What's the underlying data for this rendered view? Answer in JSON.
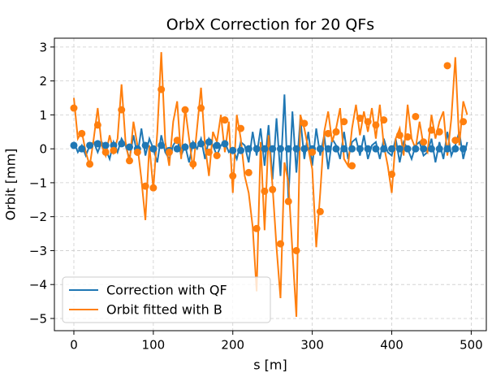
{
  "chart_data": {
    "type": "line",
    "title": "OrbX Correction for 20 QFs",
    "xlabel": "s [m]",
    "ylabel": "Orbit [mm]",
    "xlim": [
      -24.5,
      519
    ],
    "ylim": [
      -5.36,
      3.26
    ],
    "xticks": [
      0,
      100,
      200,
      300,
      400,
      500
    ],
    "yticks": [
      {
        "value": -5,
        "label": "−5"
      },
      {
        "value": -4,
        "label": "−4"
      },
      {
        "value": -3,
        "label": "−3"
      },
      {
        "value": -2,
        "label": "−2"
      },
      {
        "value": -1,
        "label": "−1"
      },
      0,
      1,
      2,
      3
    ],
    "grid": true,
    "legend": "lower left",
    "series": [
      {
        "name": "Correction with QF",
        "color": "#1f77b4",
        "x": [
          0,
          5,
          10,
          15,
          20,
          25,
          30,
          35,
          40,
          45,
          50,
          55,
          60,
          65,
          70,
          75,
          80,
          85,
          90,
          95,
          100,
          105,
          110,
          115,
          120,
          125,
          130,
          135,
          140,
          145,
          150,
          155,
          160,
          165,
          170,
          175,
          180,
          185,
          190,
          195,
          200,
          205,
          210,
          215,
          220,
          225,
          230,
          235,
          240,
          245,
          250,
          255,
          260,
          265,
          270,
          275,
          280,
          285,
          290,
          295,
          300,
          305,
          310,
          315,
          320,
          325,
          330,
          335,
          340,
          345,
          350,
          355,
          360,
          365,
          370,
          375,
          380,
          385,
          390,
          395,
          400,
          405,
          410,
          415,
          420,
          425,
          430,
          435,
          440,
          445,
          450,
          455,
          460,
          465,
          470,
          475,
          480,
          485,
          490,
          495
        ],
        "values": [
          0.2,
          -0.1,
          0.1,
          -0.2,
          0.1,
          0.2,
          -0.1,
          0.2,
          0.0,
          -0.3,
          0.2,
          -0.1,
          0.3,
          0.1,
          -0.3,
          0.4,
          -0.2,
          0.6,
          -0.2,
          0.3,
          0.0,
          -0.4,
          0.4,
          -0.1,
          -0.3,
          0.1,
          0.3,
          -0.2,
          0.1,
          -0.4,
          0.2,
          0.0,
          0.3,
          -0.3,
          0.3,
          0.1,
          -0.2,
          0.1,
          0.2,
          -0.1,
          0.0,
          -0.3,
          0.2,
          0.1,
          -0.4,
          0.5,
          -0.2,
          0.6,
          -0.5,
          0.7,
          -0.9,
          0.9,
          -0.8,
          1.6,
          -1.5,
          1.1,
          -0.7,
          0.9,
          -0.3,
          0.5,
          -0.5,
          0.6,
          -0.2,
          0.4,
          -0.6,
          0.3,
          0.1,
          -0.3,
          0.5,
          -0.3,
          0.2,
          0.3,
          -0.2,
          0.4,
          -0.3,
          0.1,
          0.2,
          -0.3,
          0.3,
          -0.1,
          -0.2,
          0.3,
          -0.4,
          0.2,
          0.0,
          -0.3,
          0.1,
          0.2,
          -0.2,
          -0.1,
          0.3,
          -0.4,
          0.2,
          -0.3,
          0.5,
          -0.2,
          0.1,
          0.5,
          -0.3,
          0.2
        ],
        "marker_x": [
          0,
          10,
          20,
          30,
          40,
          50,
          60,
          70,
          80,
          90,
          100,
          110,
          120,
          130,
          140,
          150,
          160,
          170,
          180,
          190,
          200,
          210,
          220,
          230,
          240,
          250,
          260,
          270,
          280,
          290,
          300,
          310,
          320,
          330,
          340,
          350,
          360,
          370,
          380,
          390,
          400,
          410,
          420,
          430,
          440,
          450,
          460,
          470,
          480,
          490
        ],
        "marker_values": [
          0.1,
          0.0,
          0.1,
          0.15,
          0.1,
          0.1,
          0.15,
          0.05,
          0.0,
          0.1,
          0.0,
          0.1,
          -0.05,
          0.0,
          0.05,
          0.1,
          0.15,
          0.2,
          0.1,
          0.15,
          -0.05,
          -0.05,
          0,
          0,
          0,
          0,
          0,
          0,
          0,
          0,
          0,
          0,
          0,
          0,
          0,
          0,
          0,
          0,
          0,
          0,
          0,
          0,
          0,
          0,
          0,
          0,
          0,
          0,
          0,
          0
        ]
      },
      {
        "name": "Orbit fitted with B",
        "color": "#ff7f0e",
        "x": [
          0,
          5,
          10,
          15,
          20,
          25,
          30,
          35,
          40,
          45,
          50,
          55,
          60,
          65,
          70,
          75,
          80,
          85,
          90,
          95,
          100,
          105,
          110,
          115,
          120,
          125,
          130,
          135,
          140,
          145,
          150,
          155,
          160,
          165,
          170,
          175,
          180,
          185,
          190,
          195,
          200,
          205,
          210,
          215,
          220,
          225,
          230,
          235,
          240,
          245,
          250,
          255,
          260,
          265,
          270,
          275,
          280,
          285,
          290,
          295,
          300,
          305,
          310,
          315,
          320,
          325,
          330,
          335,
          340,
          345,
          350,
          355,
          360,
          365,
          370,
          375,
          380,
          385,
          390,
          395,
          400,
          405,
          410,
          415,
          420,
          425,
          430,
          435,
          440,
          445,
          450,
          455,
          460,
          465,
          470,
          475,
          480,
          485,
          490,
          495
        ],
        "values": [
          1.5,
          0.3,
          0.5,
          -0.1,
          -0.5,
          0.3,
          1.2,
          0.1,
          -0.2,
          0.4,
          -0.1,
          0.3,
          1.9,
          0.2,
          -0.4,
          0.8,
          0.1,
          -0.9,
          -2.1,
          0.1,
          -1.2,
          0.5,
          2.85,
          0.2,
          -0.5,
          0.8,
          1.4,
          -0.3,
          1.2,
          0.3,
          -0.6,
          0.6,
          1.8,
          0.1,
          -0.8,
          0.5,
          0.2,
          1.0,
          -0.1,
          0.8,
          -1.3,
          1.0,
          0.3,
          -0.8,
          -1.3,
          -2.3,
          -4.2,
          0.2,
          -2.4,
          0.4,
          -1.1,
          -2.9,
          -4.4,
          -0.4,
          -1.0,
          -3.0,
          -4.95,
          1.0,
          0.6,
          0.0,
          -0.6,
          -2.9,
          -1.3,
          0.5,
          1.1,
          0.2,
          0.6,
          1.2,
          -0.3,
          -0.5,
          0.6,
          1.3,
          0.4,
          1.1,
          0.5,
          1.2,
          0.3,
          1.3,
          0.1,
          -0.5,
          -1.3,
          0.3,
          0.6,
          -0.2,
          1.3,
          0.3,
          0.0,
          0.8,
          0.1,
          -0.1,
          1.0,
          0.3,
          0.8,
          1.1,
          -0.2,
          0.9,
          2.7,
          0.1,
          1.4,
          1.0
        ],
        "marker_x": [
          0,
          10,
          20,
          30,
          40,
          50,
          60,
          70,
          80,
          90,
          100,
          110,
          120,
          130,
          140,
          150,
          160,
          170,
          180,
          190,
          200,
          210,
          220,
          230,
          240,
          250,
          260,
          270,
          280,
          290,
          300,
          310,
          320,
          330,
          340,
          350,
          360,
          370,
          380,
          390,
          400,
          410,
          420,
          430,
          440,
          450,
          460,
          470,
          480,
          490
        ],
        "marker_values": [
          1.2,
          0.45,
          -0.45,
          0.7,
          -0.1,
          -0.05,
          1.15,
          -0.35,
          -0.1,
          -1.1,
          -1.15,
          1.75,
          -0.1,
          0.25,
          1.15,
          -0.45,
          1.2,
          -0.1,
          -0.2,
          0.85,
          -0.8,
          0.6,
          -0.7,
          -2.35,
          -1.25,
          -1.2,
          -2.8,
          -1.55,
          -3.0,
          0.75,
          -0.1,
          -1.85,
          0.45,
          0.5,
          0.8,
          -0.5,
          0.9,
          0.8,
          0.7,
          0.85,
          -0.75,
          0.4,
          0.35,
          0.95,
          0.2,
          0.55,
          0.5,
          2.45,
          0.25,
          0.8
        ]
      }
    ]
  }
}
